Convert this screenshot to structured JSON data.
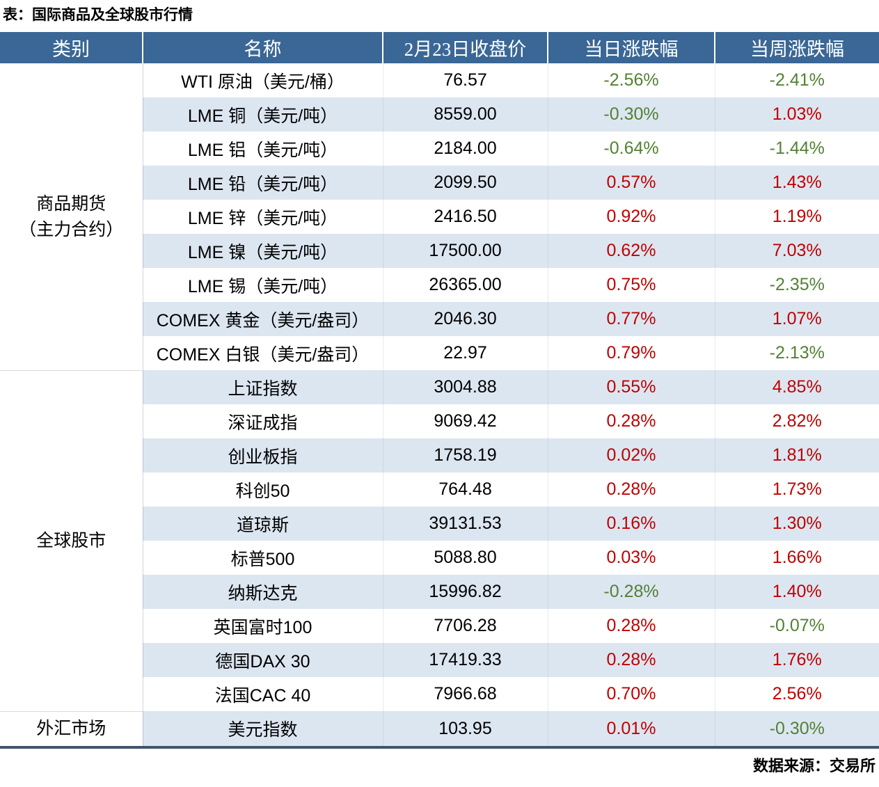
{
  "title": "表：国际商品及全球股市行情",
  "source_note": "数据来源：交易所",
  "colors": {
    "header_bg": "#3A6795",
    "header_text": "#FFFFFF",
    "stripe_bg": "#DCE6F1",
    "row_bg": "#FFFFFF",
    "up_red": "#C00000",
    "down_green": "#538135",
    "bottom_border": "#44546A"
  },
  "chart_data": {
    "type": "table",
    "title": "表：国际商品及全球股市行情",
    "columns": [
      "类别",
      "名称",
      "2月23日收盘价",
      "当日涨跌幅",
      "当周涨跌幅"
    ],
    "groups": [
      {
        "category_lines": [
          "商品期货",
          "（主力合约）"
        ],
        "rows": [
          {
            "name": "WTI 原油（美元/桶）",
            "close": "76.57",
            "day_change": "-2.56%",
            "week_change": "-2.41%"
          },
          {
            "name": "LME 铜（美元/吨）",
            "close": "8559.00",
            "day_change": "-0.30%",
            "week_change": "1.03%"
          },
          {
            "name": "LME 铝（美元/吨）",
            "close": "2184.00",
            "day_change": "-0.64%",
            "week_change": "-1.44%"
          },
          {
            "name": "LME 铅（美元/吨）",
            "close": "2099.50",
            "day_change": "0.57%",
            "week_change": "1.43%"
          },
          {
            "name": "LME 锌（美元/吨）",
            "close": "2416.50",
            "day_change": "0.92%",
            "week_change": "1.19%"
          },
          {
            "name": "LME 镍（美元/吨）",
            "close": "17500.00",
            "day_change": "0.62%",
            "week_change": "7.03%"
          },
          {
            "name": "LME 锡（美元/吨）",
            "close": "26365.00",
            "day_change": "0.75%",
            "week_change": "-2.35%"
          },
          {
            "name": "COMEX 黄金（美元/盎司）",
            "close": "2046.30",
            "day_change": "0.77%",
            "week_change": "1.07%"
          },
          {
            "name": "COMEX 白银（美元/盎司）",
            "close": "22.97",
            "day_change": "0.79%",
            "week_change": "-2.13%"
          }
        ]
      },
      {
        "category_lines": [
          "全球股市"
        ],
        "rows": [
          {
            "name": "上证指数",
            "close": "3004.88",
            "day_change": "0.55%",
            "week_change": "4.85%"
          },
          {
            "name": "深证成指",
            "close": "9069.42",
            "day_change": "0.28%",
            "week_change": "2.82%"
          },
          {
            "name": "创业板指",
            "close": "1758.19",
            "day_change": "0.02%",
            "week_change": "1.81%"
          },
          {
            "name": "科创50",
            "close": "764.48",
            "day_change": "0.28%",
            "week_change": "1.73%"
          },
          {
            "name": "道琼斯",
            "close": "39131.53",
            "day_change": "0.16%",
            "week_change": "1.30%"
          },
          {
            "name": "标普500",
            "close": "5088.80",
            "day_change": "0.03%",
            "week_change": "1.66%"
          },
          {
            "name": "纳斯达克",
            "close": "15996.82",
            "day_change": "-0.28%",
            "week_change": "1.40%"
          },
          {
            "name": "英国富时100",
            "close": "7706.28",
            "day_change": "0.28%",
            "week_change": "-0.07%"
          },
          {
            "name": "德国DAX 30",
            "close": "17419.33",
            "day_change": "0.28%",
            "week_change": "1.76%"
          },
          {
            "name": "法国CAC 40",
            "close": "7966.68",
            "day_change": "0.70%",
            "week_change": "2.56%"
          }
        ]
      },
      {
        "category_lines": [
          "外汇市场"
        ],
        "rows": [
          {
            "name": "美元指数",
            "close": "103.95",
            "day_change": "0.01%",
            "week_change": "-0.30%"
          }
        ]
      }
    ]
  }
}
